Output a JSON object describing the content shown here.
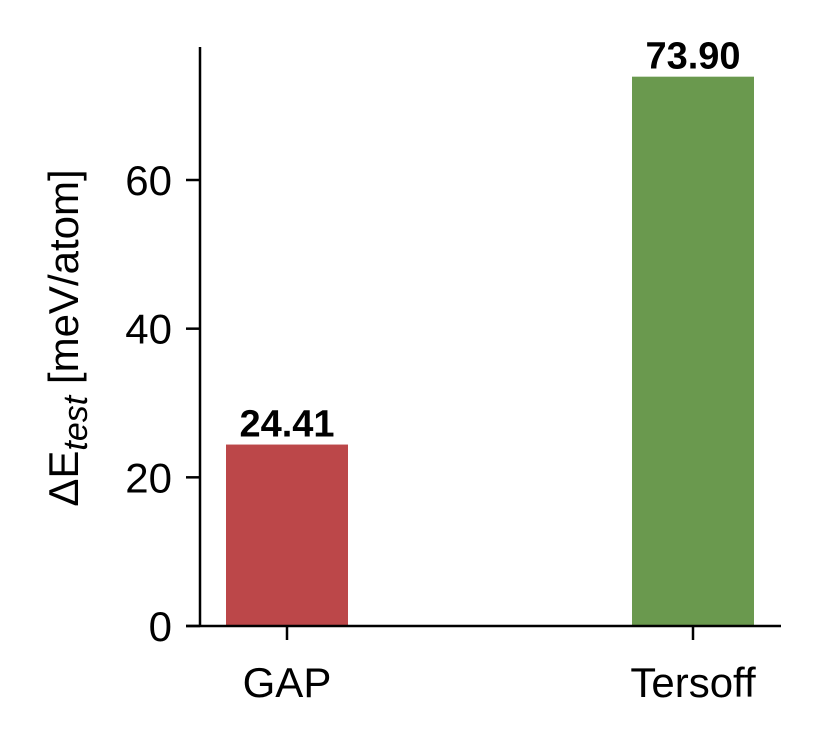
{
  "chart_data": {
    "type": "bar",
    "title": "",
    "xlabel": "",
    "ylabel": "ΔE_test [meV/atom]",
    "ylabel_parts": {
      "main": "ΔE",
      "subscript": "test",
      "unit": " [meV/atom]"
    },
    "categories": [
      "GAP",
      "Tersoff"
    ],
    "values": [
      24.41,
      73.9
    ],
    "value_labels": [
      "24.41",
      "73.90"
    ],
    "colors": [
      "#bc4749",
      "#6a994e"
    ],
    "yticks": [
      0,
      20,
      40,
      60
    ],
    "ytick_labels": [
      "0",
      "20",
      "40",
      "60"
    ],
    "ylim": [
      0,
      77.8
    ],
    "grid": false,
    "legend": null
  }
}
